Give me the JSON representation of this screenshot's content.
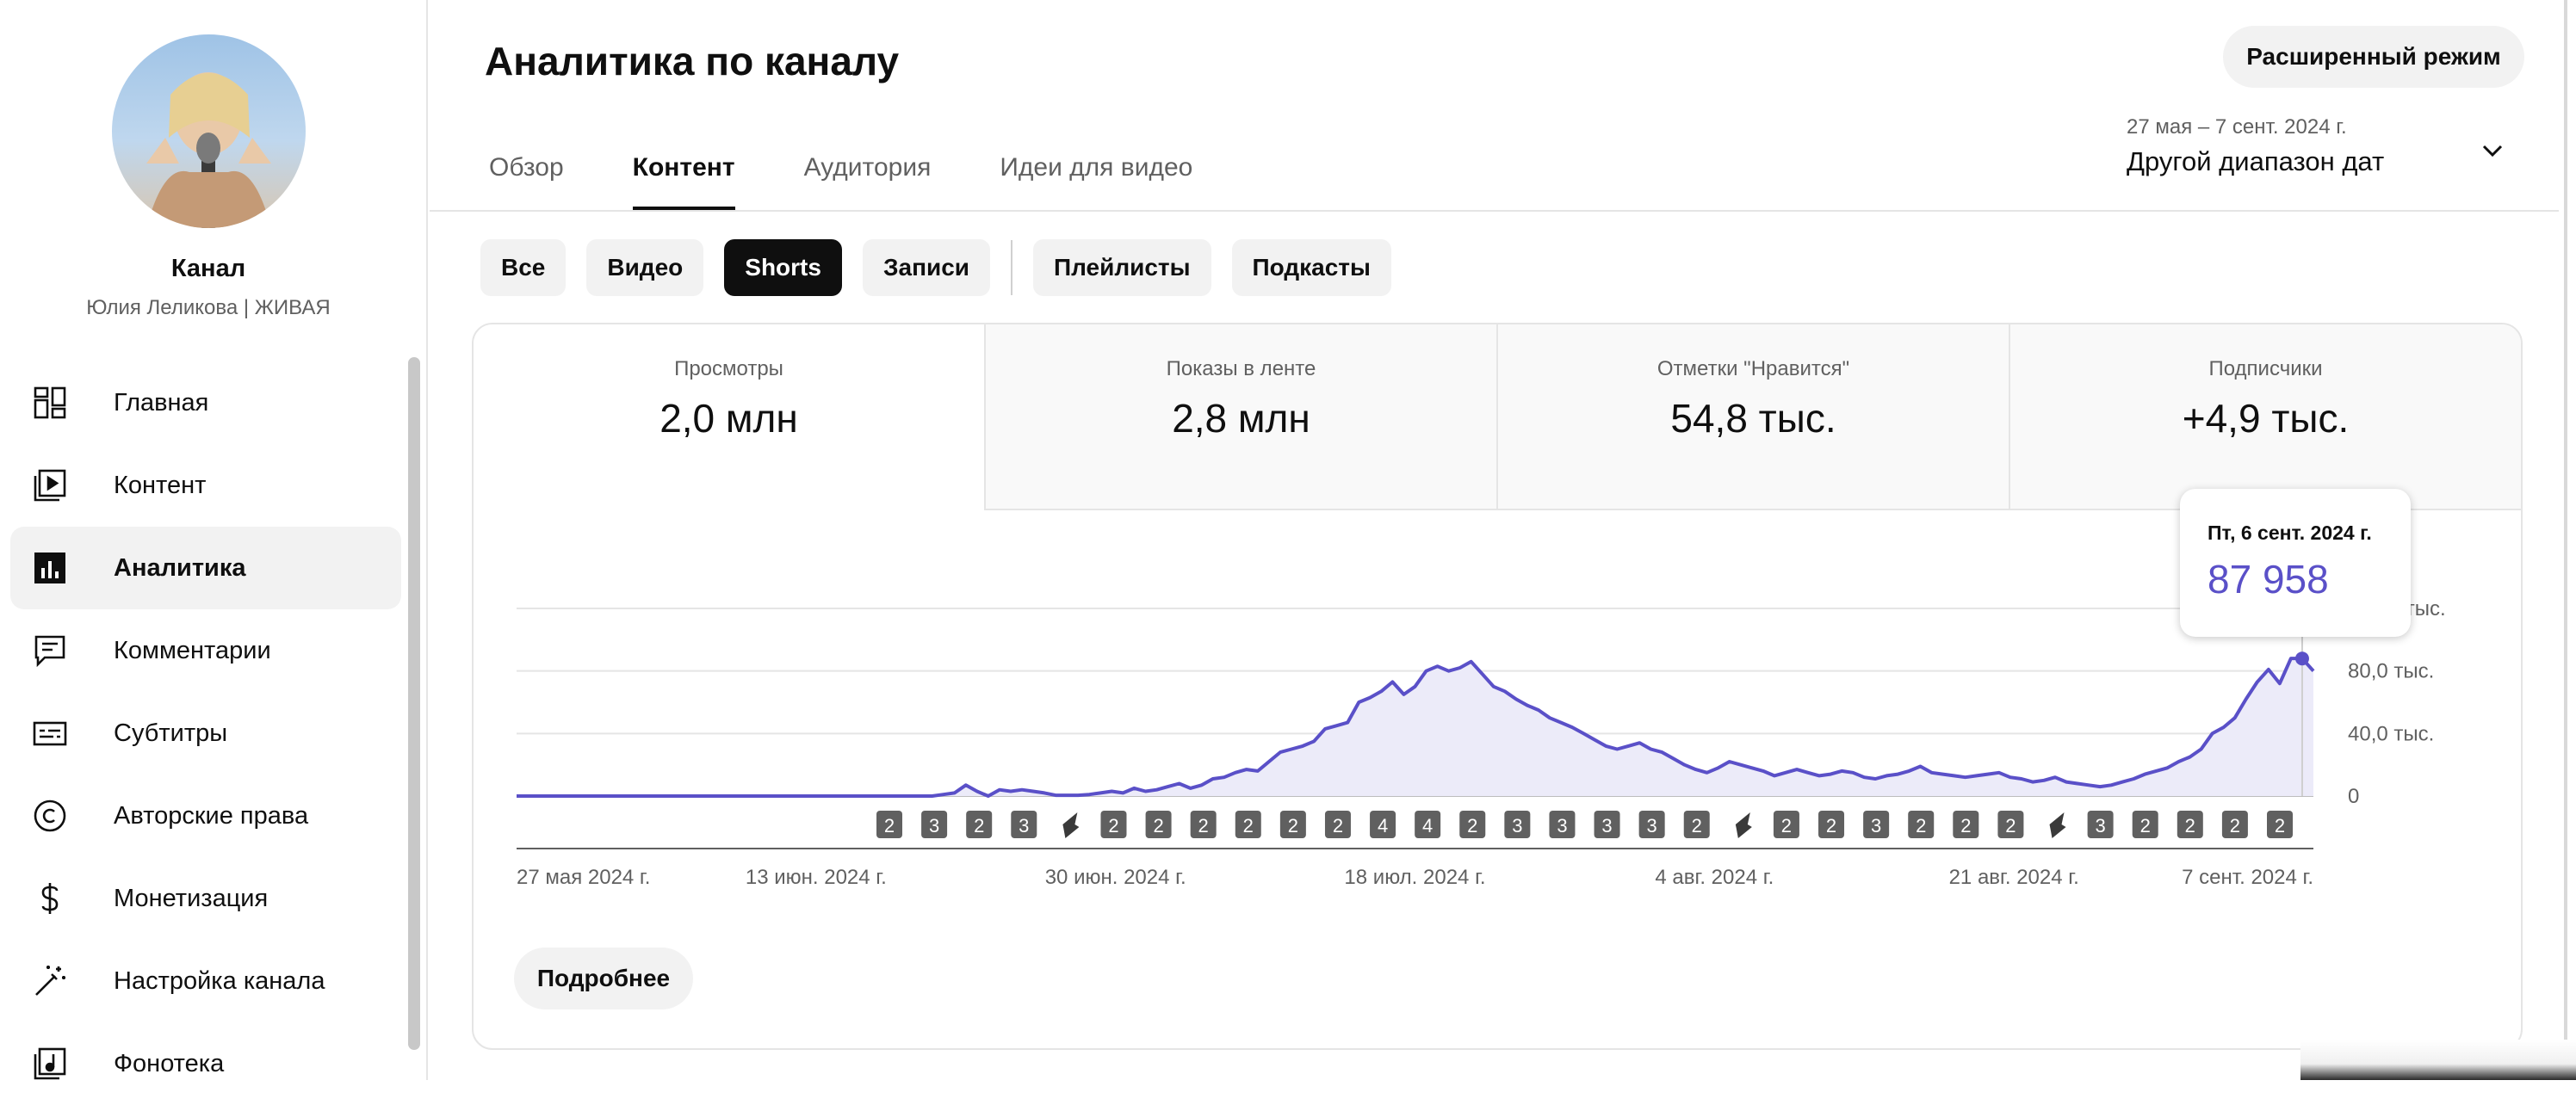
{
  "sidebar": {
    "channel_title": "Канал",
    "channel_name": "Юлия Леликова | ЖИВАЯ",
    "items": [
      {
        "label": "Главная",
        "icon": "dashboard-icon"
      },
      {
        "label": "Контент",
        "icon": "content-icon"
      },
      {
        "label": "Аналитика",
        "icon": "analytics-icon",
        "active": true
      },
      {
        "label": "Комментарии",
        "icon": "comments-icon"
      },
      {
        "label": "Субтитры",
        "icon": "subtitles-icon"
      },
      {
        "label": "Авторские права",
        "icon": "copyright-icon"
      },
      {
        "label": "Монетизация",
        "icon": "dollar-icon"
      },
      {
        "label": "Настройка канала",
        "icon": "magic-wand-icon"
      },
      {
        "label": "Фонотека",
        "icon": "music-library-icon"
      }
    ]
  },
  "header": {
    "title": "Аналитика по каналу",
    "advanced_button": "Расширенный режим",
    "tabs": [
      "Обзор",
      "Контент",
      "Аудитория",
      "Идеи для видео"
    ],
    "active_tab": "Контент",
    "date_range": "27 мая – 7 сент. 2024 г.",
    "date_label": "Другой диапазон дат"
  },
  "filters": {
    "chips": [
      "Все",
      "Видео",
      "Shorts",
      "Записи"
    ],
    "chips_secondary": [
      "Плейлисты",
      "Подкасты"
    ],
    "selected": "Shorts"
  },
  "metrics": [
    {
      "title": "Просмотры",
      "value": "2,0 млн"
    },
    {
      "title": "Показы в ленте",
      "value": "2,8 млн"
    },
    {
      "title": "Отметки \"Нравится\"",
      "value": "54,8 тыс."
    },
    {
      "title": "Подписчики",
      "value": "+4,9 тыс."
    }
  ],
  "tooltip": {
    "date": "Пт, 6 сент. 2024 г.",
    "value": "87 958"
  },
  "more_button": "Подробнее",
  "colors": {
    "accent": "#5a50c8",
    "fill": "#ecebf9",
    "selected_chip": "#0f0f0f"
  },
  "chart_data": {
    "type": "area",
    "series": [
      {
        "values": [
          0,
          0,
          0,
          0,
          0,
          0,
          0,
          0,
          0,
          0,
          0,
          0,
          0,
          0,
          0,
          0,
          0,
          0,
          0,
          0,
          0,
          0,
          0,
          0,
          0,
          0,
          0,
          0,
          0,
          0,
          0,
          0,
          0,
          0,
          0,
          0,
          0,
          0,
          1000,
          2000,
          7000,
          3000,
          0,
          4000,
          3000,
          4000,
          3000,
          2000,
          500,
          500,
          500,
          1000,
          2000,
          3000,
          2000,
          5000,
          3000,
          4000,
          6000,
          8000,
          5000,
          7000,
          11000,
          12000,
          15000,
          17000,
          16000,
          22000,
          28000,
          30000,
          32000,
          35000,
          43000,
          45000,
          47000,
          60000,
          63000,
          67000,
          73000,
          65000,
          70000,
          80000,
          83000,
          80000,
          82000,
          86000,
          78000,
          70000,
          67000,
          62000,
          58000,
          55000,
          50000,
          47000,
          44000,
          40000,
          36000,
          32000,
          30000,
          32000,
          34000,
          30000,
          28000,
          24000,
          20000,
          17000,
          15000,
          18000,
          22000,
          20000,
          18000,
          16000,
          13000,
          15000,
          17000,
          15000,
          13000,
          14000,
          16000,
          15000,
          12000,
          11000,
          13000,
          14000,
          16000,
          19000,
          15000,
          14000,
          13000,
          12000,
          13000,
          14000,
          15000,
          12000,
          11000,
          9000,
          10000,
          12000,
          9000,
          8000,
          7000,
          6000,
          7000,
          9000,
          11000,
          14000,
          16000,
          18000,
          22000,
          25000,
          30000,
          40000,
          44000,
          50000,
          62000,
          73000,
          81000,
          72000,
          88000,
          87958,
          80000
        ]
      }
    ],
    "y_ticks": [
      "0",
      "40,0 тыс.",
      "80,0 тыс.",
      "120,0 тыс."
    ],
    "x_ticks": [
      "27 мая 2024 г.",
      "13 июн. 2024 г.",
      "30 июн. 2024 г.",
      "18 июл. 2024 г.",
      "4 авг. 2024 г.",
      "21 авг. 2024 г.",
      "7 сент. 2024 г."
    ],
    "ylim": [
      0,
      120000
    ],
    "markers": [
      {
        "type": "count",
        "label": "2"
      },
      {
        "type": "count",
        "label": "3"
      },
      {
        "type": "count",
        "label": "2"
      },
      {
        "type": "count",
        "label": "3"
      },
      {
        "type": "short"
      },
      {
        "type": "count",
        "label": "2"
      },
      {
        "type": "count",
        "label": "2"
      },
      {
        "type": "count",
        "label": "2"
      },
      {
        "type": "count",
        "label": "2"
      },
      {
        "type": "count",
        "label": "2"
      },
      {
        "type": "count",
        "label": "2"
      },
      {
        "type": "count",
        "label": "4"
      },
      {
        "type": "count",
        "label": "4"
      },
      {
        "type": "count",
        "label": "2"
      },
      {
        "type": "count",
        "label": "3"
      },
      {
        "type": "count",
        "label": "3"
      },
      {
        "type": "count",
        "label": "3"
      },
      {
        "type": "count",
        "label": "3"
      },
      {
        "type": "count",
        "label": "2"
      },
      {
        "type": "short"
      },
      {
        "type": "count",
        "label": "2"
      },
      {
        "type": "count",
        "label": "2"
      },
      {
        "type": "count",
        "label": "3"
      },
      {
        "type": "count",
        "label": "2"
      },
      {
        "type": "count",
        "label": "2"
      },
      {
        "type": "count",
        "label": "2"
      },
      {
        "type": "short"
      },
      {
        "type": "count",
        "label": "3"
      },
      {
        "type": "count",
        "label": "2"
      },
      {
        "type": "count",
        "label": "2"
      },
      {
        "type": "count",
        "label": "2"
      },
      {
        "type": "count",
        "label": "2"
      }
    ]
  }
}
